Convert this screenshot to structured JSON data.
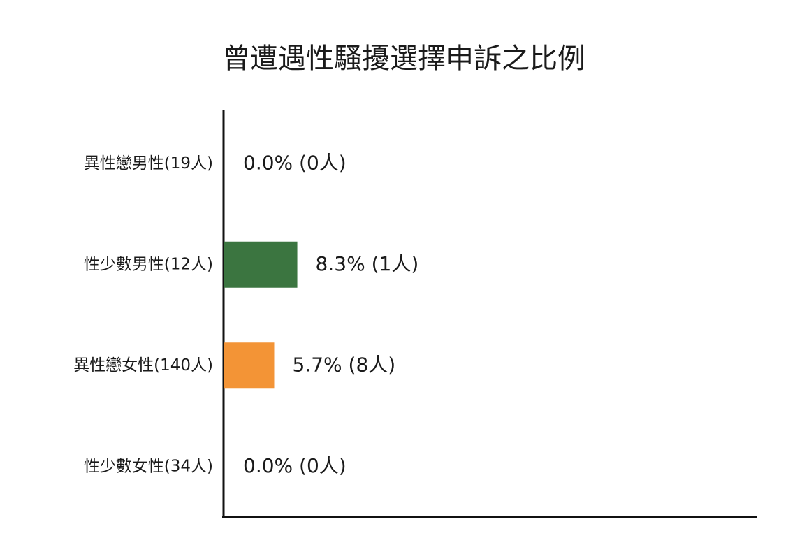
{
  "chart_data": {
    "type": "bar",
    "orientation": "horizontal",
    "title": "曾遭遇性騷擾選擇申訴之比例",
    "categories": [
      "異性戀男性(19人)",
      "性少數男性(12人)",
      "異性戀女性(140人)",
      "性少數女性(34人)"
    ],
    "values": [
      0,
      8.3,
      5.7,
      0
    ],
    "value_labels": [
      "0.0% (0人)",
      "8.3% (1人)",
      "5.7% (8人)",
      "0.0% (0人)"
    ],
    "colors": [
      "#3b7540",
      "#3b7540",
      "#f39436",
      "#f39436"
    ],
    "xlim": [
      0,
      60
    ],
    "grid": false
  }
}
